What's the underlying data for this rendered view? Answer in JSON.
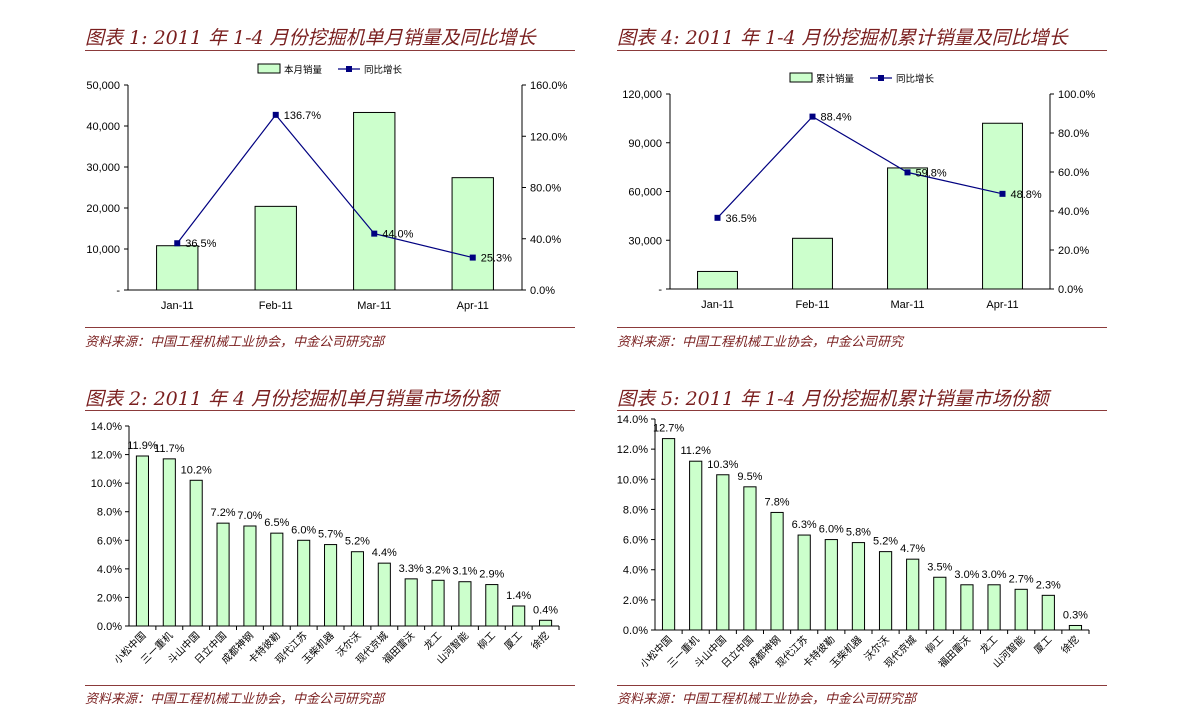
{
  "chart_data": [
    {
      "type": "bar",
      "title": "图表 1: 2011 年 1-4 月份挖掘机单月销量及同比增长",
      "source": "资料来源：中国工程机械工业协会，中金公司研究部",
      "categories": [
        "Jan-11",
        "Feb-11",
        "Mar-11",
        "Apr-11"
      ],
      "y_left_ticks": [
        "-",
        "10,000",
        "20,000",
        "30,000",
        "40,000",
        "50,000"
      ],
      "y_right_ticks": [
        "0.0%",
        "40.0%",
        "80.0%",
        "120.0%",
        "160.0%"
      ],
      "ylim_left": [
        0,
        50000
      ],
      "ylim_right": [
        0,
        160
      ],
      "series": [
        {
          "name": "本月销量",
          "type": "bar",
          "axis": "left",
          "values": [
            10800,
            20400,
            43300,
            27400
          ]
        },
        {
          "name": "同比增长",
          "type": "line",
          "axis": "right",
          "values": [
            36.5,
            136.7,
            44.0,
            25.3
          ],
          "labels": [
            "36.5%",
            "136.7%",
            "44.0%",
            "25.3%"
          ]
        }
      ],
      "legend": "top",
      "colors": {
        "bar": "#ccffcc",
        "line": "#000080"
      }
    },
    {
      "type": "bar",
      "title": "图表 4: 2011 年 1-4 月份挖掘机累计销量及同比增长",
      "source": "资料来源：中国工程机械工业协会，中金公司研究",
      "categories": [
        "Jan-11",
        "Feb-11",
        "Mar-11",
        "Apr-11"
      ],
      "y_left_ticks": [
        "-",
        "30,000",
        "60,000",
        "90,000",
        "120,000"
      ],
      "y_right_ticks": [
        "0.0%",
        "20.0%",
        "40.0%",
        "60.0%",
        "80.0%",
        "100.0%"
      ],
      "ylim_left": [
        0,
        120000
      ],
      "ylim_right": [
        0,
        100
      ],
      "series": [
        {
          "name": "累计销量",
          "type": "bar",
          "axis": "left",
          "values": [
            10800,
            31200,
            74500,
            102000
          ]
        },
        {
          "name": "同比增长",
          "type": "line",
          "axis": "right",
          "values": [
            36.5,
            88.4,
            59.8,
            48.8
          ],
          "labels": [
            "36.5%",
            "88.4%",
            "59.8%",
            "48.8%"
          ]
        }
      ],
      "legend": "top",
      "colors": {
        "bar": "#ccffcc",
        "line": "#000080"
      }
    },
    {
      "type": "bar",
      "title": "图表 2: 2011 年 4 月份挖掘机单月销量市场份额",
      "source": "资料来源：中国工程机械工业协会，中金公司研究部",
      "categories": [
        "小松中国",
        "三一重机",
        "斗山中国",
        "日立中国",
        "成都神钢",
        "卡特彼勒",
        "现代江苏",
        "玉柴机器",
        "沃尔沃",
        "现代京城",
        "福田雷沃",
        "龙工",
        "山河智能",
        "柳工",
        "厦工",
        "徐挖"
      ],
      "values": [
        11.9,
        11.7,
        10.2,
        7.2,
        7.0,
        6.5,
        6.0,
        5.7,
        5.2,
        4.4,
        3.3,
        3.2,
        3.1,
        2.9,
        1.4,
        0.4
      ],
      "labels": [
        "11.9%",
        "11.7%",
        "10.2%",
        "7.2%",
        "7.0%",
        "6.5%",
        "6.0%",
        "5.7%",
        "5.2%",
        "4.4%",
        "3.3%",
        "3.2%",
        "3.1%",
        "2.9%",
        "1.4%",
        "0.4%"
      ],
      "y_ticks": [
        "0.0%",
        "2.0%",
        "4.0%",
        "6.0%",
        "8.0%",
        "10.0%",
        "12.0%",
        "14.0%"
      ],
      "ylim": [
        0,
        14
      ],
      "colors": {
        "bar": "#ccffcc"
      }
    },
    {
      "type": "bar",
      "title": "图表 5: 2011 年 1-4 月份挖掘机累计销量市场份额",
      "source": "资料来源：中国工程机械工业协会，中金公司研究部",
      "categories": [
        "小松中国",
        "三一重机",
        "斗山中国",
        "日立中国",
        "成都神钢",
        "现代江苏",
        "卡特彼勒",
        "玉柴机器",
        "沃尔沃",
        "现代京城",
        "柳工",
        "福田雷沃",
        "龙工",
        "山河智能",
        "厦工",
        "徐挖"
      ],
      "values": [
        12.7,
        11.2,
        10.3,
        9.5,
        7.8,
        6.3,
        6.0,
        5.8,
        5.2,
        4.7,
        3.5,
        3.0,
        3.0,
        2.7,
        2.3,
        0.3
      ],
      "labels": [
        "12.7%",
        "11.2%",
        "10.3%",
        "9.5%",
        "7.8%",
        "6.3%",
        "6.0%",
        "5.8%",
        "5.2%",
        "4.7%",
        "3.5%",
        "3.0%",
        "3.0%",
        "2.7%",
        "2.3%",
        "0.3%"
      ],
      "y_ticks": [
        "0.0%",
        "2.0%",
        "4.0%",
        "6.0%",
        "8.0%",
        "10.0%",
        "12.0%",
        "14.0%"
      ],
      "ylim": [
        0,
        14
      ],
      "colors": {
        "bar": "#ccffcc"
      }
    }
  ]
}
